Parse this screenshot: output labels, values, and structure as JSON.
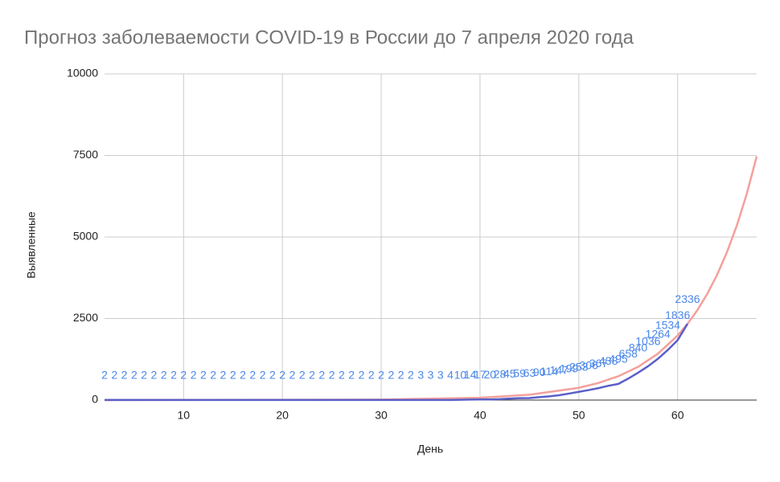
{
  "chart_data": {
    "type": "line",
    "title": "Прогноз заболеваемости COVID-19 в России  до  7 апреля 2020 года",
    "x_label": "День",
    "y_label": "Выявленные",
    "xlim": [
      2,
      68
    ],
    "xticks": [
      10,
      20,
      30,
      40,
      50,
      60
    ],
    "ylim": [
      0,
      10000
    ],
    "yticks": [
      0,
      2500,
      5000,
      7500,
      10000
    ],
    "grid": true,
    "series": [
      {
        "color": "#f4a09c",
        "data_labels": false,
        "x": [
          2,
          30,
          40,
          45,
          50,
          52,
          54,
          56,
          58,
          60,
          61,
          62,
          63,
          64,
          65,
          66,
          67,
          68
        ],
        "values": [
          0,
          14,
          72,
          164,
          376,
          524,
          731,
          1018,
          1420,
          1979,
          2336,
          2758,
          3256,
          3844,
          4539,
          5359,
          6327,
          7470
        ]
      },
      {
        "color": "#5a5fc8",
        "label_color": "#4a86e8",
        "data_labels": true,
        "x": [
          2,
          3,
          4,
          5,
          6,
          7,
          8,
          9,
          10,
          11,
          12,
          13,
          14,
          15,
          16,
          17,
          18,
          19,
          20,
          21,
          22,
          23,
          24,
          25,
          26,
          27,
          28,
          29,
          30,
          31,
          32,
          33,
          34,
          35,
          36,
          37,
          38,
          39,
          40,
          41,
          42,
          43,
          44,
          45,
          46,
          47,
          48,
          49,
          50,
          51,
          52,
          53,
          54,
          55,
          56,
          57,
          58,
          59,
          60,
          61
        ],
        "values": [
          2,
          2,
          2,
          2,
          2,
          2,
          2,
          2,
          2,
          2,
          2,
          2,
          2,
          2,
          2,
          2,
          2,
          2,
          2,
          2,
          2,
          2,
          2,
          2,
          2,
          2,
          2,
          2,
          2,
          2,
          2,
          2,
          3,
          3,
          3,
          4,
          10,
          14,
          17,
          20,
          28,
          45,
          59,
          63,
          90,
          114,
          147,
          199,
          253,
          306,
          367,
          438,
          495,
          658,
          840,
          1036,
          1264,
          1534,
          1836,
          2336
        ]
      }
    ]
  }
}
